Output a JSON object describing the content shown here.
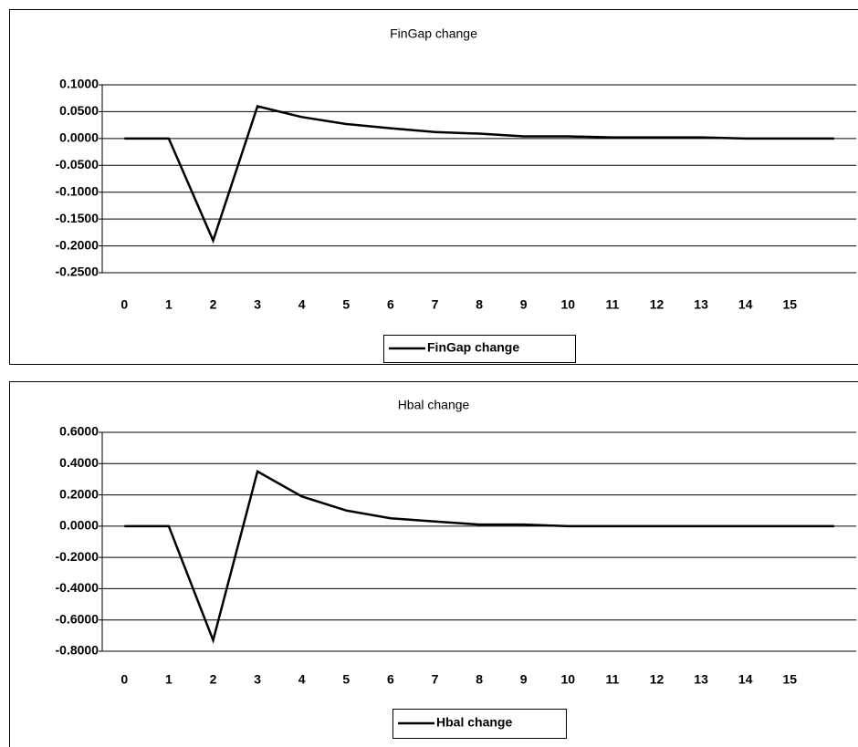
{
  "chart_data": [
    {
      "type": "line",
      "title": "FinGap change",
      "categories": [
        "0",
        "1",
        "2",
        "3",
        "4",
        "5",
        "6",
        "7",
        "8",
        "9",
        "10",
        "11",
        "12",
        "13",
        "14",
        "15",
        null
      ],
      "series": [
        {
          "name": "FinGap change",
          "color": "#000000",
          "values": [
            0,
            0,
            -0.19,
            0.06,
            0.04,
            0.027,
            0.019,
            0.012,
            0.009,
            0.004,
            0.004,
            0.002,
            0.002,
            0.002,
            0,
            0,
            0
          ]
        }
      ],
      "ylim": [
        -0.25,
        0.1
      ],
      "yticks": [
        {
          "value": -0.25,
          "label": "-0.2500"
        },
        {
          "value": -0.2,
          "label": "-0.2000"
        },
        {
          "value": -0.15,
          "label": "-0.1500"
        },
        {
          "value": -0.1,
          "label": "-0.1000"
        },
        {
          "value": -0.05,
          "label": "-0.0500"
        },
        {
          "value": 0,
          "label": "0.0000"
        },
        {
          "value": 0.05,
          "label": "0.0500"
        },
        {
          "value": 0.1,
          "label": "0.1000"
        }
      ],
      "grid": true,
      "legend": "bottom"
    },
    {
      "type": "line",
      "title": "Hbal change",
      "categories": [
        "0",
        "1",
        "2",
        "3",
        "4",
        "5",
        "6",
        "7",
        "8",
        "9",
        "10",
        "11",
        "12",
        "13",
        "14",
        "15",
        null
      ],
      "series": [
        {
          "name": "Hbal change",
          "color": "#000000",
          "values": [
            0,
            0,
            -0.73,
            0.35,
            0.19,
            0.1,
            0.05,
            0.03,
            0.01,
            0.01,
            0,
            0,
            0,
            0,
            0,
            0,
            0
          ]
        }
      ],
      "ylim": [
        -0.8,
        0.6
      ],
      "yticks": [
        {
          "value": -0.8,
          "label": "-0.8000"
        },
        {
          "value": -0.6,
          "label": "-0.6000"
        },
        {
          "value": -0.4,
          "label": "-0.4000"
        },
        {
          "value": -0.2,
          "label": "-0.2000"
        },
        {
          "value": 0,
          "label": "0.0000"
        },
        {
          "value": 0.2,
          "label": "0.2000"
        },
        {
          "value": 0.4,
          "label": "0.4000"
        },
        {
          "value": 0.6,
          "label": "0.6000"
        }
      ],
      "grid": true,
      "legend": "bottom"
    }
  ]
}
